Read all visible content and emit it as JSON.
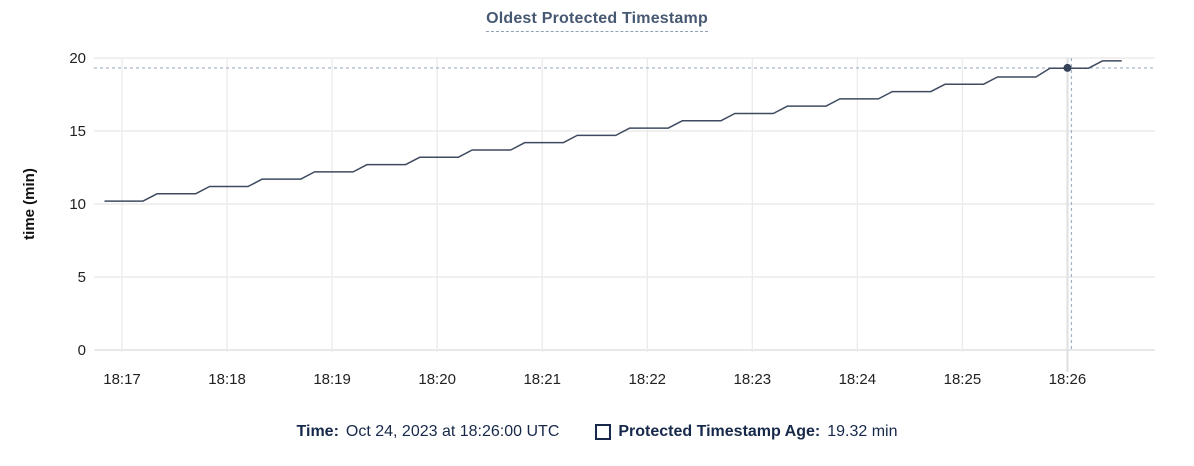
{
  "title": {
    "text": "Oldest Protected Timestamp"
  },
  "colors": {
    "series_line": "#3d4a60",
    "series_point": "#36425a",
    "crosshair_dash": "#9fb1c1",
    "crosshair_hover_line": "#dfdfdf",
    "grid_line": "#ececec",
    "grid_baseline": "#e0e0e0",
    "title_text": "#475872",
    "legend_text": "#17294a",
    "tick_text": "#222222"
  },
  "chart_data": {
    "type": "line",
    "title": "Oldest Protected Timestamp",
    "xlabel": "",
    "ylabel": "time (min)",
    "ylim": [
      0,
      20
    ],
    "x_domain": [
      44,
      650
    ],
    "x_unit": "seconds after 18:16:00 UTC",
    "grid": true,
    "yticks": [
      {
        "v": 0,
        "label": "0"
      },
      {
        "v": 5,
        "label": "5"
      },
      {
        "v": 10,
        "label": "10"
      },
      {
        "v": 15,
        "label": "15"
      },
      {
        "v": 20,
        "label": "20"
      }
    ],
    "xticks": [
      {
        "t": 60,
        "label": "18:17"
      },
      {
        "t": 120,
        "label": "18:18"
      },
      {
        "t": 180,
        "label": "18:19"
      },
      {
        "t": 240,
        "label": "18:20"
      },
      {
        "t": 300,
        "label": "18:21"
      },
      {
        "t": 360,
        "label": "18:22"
      },
      {
        "t": 420,
        "label": "18:23"
      },
      {
        "t": 480,
        "label": "18:24"
      },
      {
        "t": 540,
        "label": "18:25"
      },
      {
        "t": 600,
        "label": "18:26"
      }
    ],
    "series": [
      {
        "name": "Protected Timestamp Age",
        "unit": "min",
        "points": [
          [
            50,
            10.2
          ],
          [
            72,
            10.2
          ],
          [
            80,
            10.7
          ],
          [
            102,
            10.7
          ],
          [
            110,
            11.2
          ],
          [
            132,
            11.2
          ],
          [
            140,
            11.7
          ],
          [
            162,
            11.7
          ],
          [
            170,
            12.2
          ],
          [
            192,
            12.2
          ],
          [
            200,
            12.7
          ],
          [
            222,
            12.7
          ],
          [
            230,
            13.2
          ],
          [
            252,
            13.2
          ],
          [
            260,
            13.7
          ],
          [
            282,
            13.7
          ],
          [
            290,
            14.2
          ],
          [
            312,
            14.2
          ],
          [
            320,
            14.7
          ],
          [
            342,
            14.7
          ],
          [
            350,
            15.2
          ],
          [
            372,
            15.2
          ],
          [
            380,
            15.7
          ],
          [
            402,
            15.7
          ],
          [
            410,
            16.2
          ],
          [
            432,
            16.2
          ],
          [
            440,
            16.7
          ],
          [
            462,
            16.7
          ],
          [
            470,
            17.2
          ],
          [
            492,
            17.2
          ],
          [
            500,
            17.7
          ],
          [
            522,
            17.7
          ],
          [
            530,
            18.2
          ],
          [
            552,
            18.2
          ],
          [
            560,
            18.7
          ],
          [
            582,
            18.7
          ],
          [
            590,
            19.3
          ],
          [
            612,
            19.3
          ],
          [
            620,
            19.8
          ],
          [
            631,
            19.8
          ]
        ]
      }
    ],
    "crosshair": {
      "t": 600,
      "value": 19.32,
      "time_label": "18:26"
    },
    "legend_position": "bottom-center"
  },
  "legend": {
    "time_label": "Time:",
    "time_value": "Oct 24, 2023 at 18:26:00 UTC",
    "series_label": "Protected Timestamp Age:",
    "series_value": "19.32 min"
  }
}
